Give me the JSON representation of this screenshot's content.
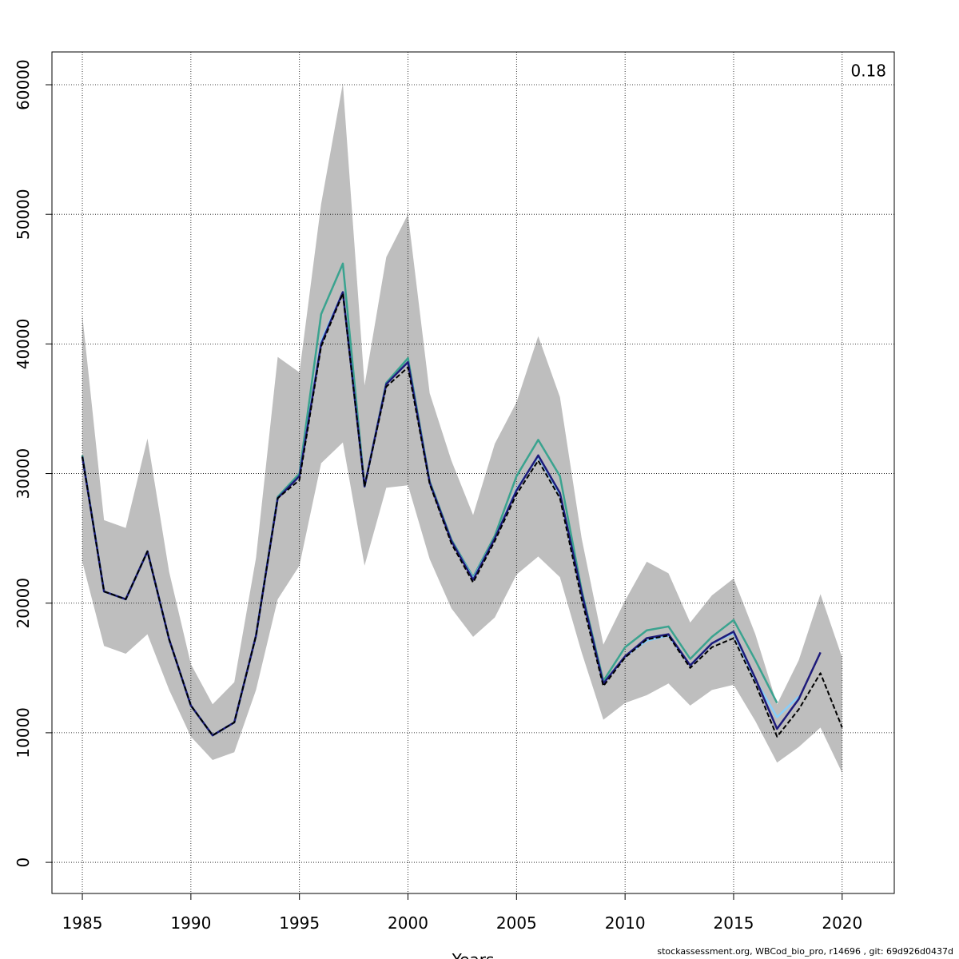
{
  "chart_data": {
    "type": "line",
    "x_label": "Years",
    "annotation": "0.18",
    "footer": "stockassessment.org, WBCod_bio_pro, r14696 , git: 69d926d0437d",
    "x": [
      1985,
      1986,
      1987,
      1988,
      1989,
      1990,
      1991,
      1992,
      1993,
      1994,
      1995,
      1996,
      1997,
      1998,
      1999,
      2000,
      2001,
      2002,
      2003,
      2004,
      2005,
      2006,
      2007,
      2008,
      2009,
      2010,
      2011,
      2012,
      2013,
      2014,
      2015,
      2016,
      2017,
      2018,
      2019,
      2020
    ],
    "band": {
      "color": "#bebebe",
      "upper": [
        42200,
        26400,
        25800,
        32700,
        22400,
        15300,
        12200,
        13900,
        23500,
        39000,
        37800,
        50800,
        60100,
        36800,
        46700,
        50000,
        36200,
        31000,
        26800,
        32300,
        35500,
        40600,
        35900,
        25000,
        16800,
        20200,
        23200,
        22300,
        18500,
        20600,
        21900,
        17600,
        12200,
        15600,
        20700,
        15800
      ],
      "lower": [
        23200,
        16700,
        16100,
        17600,
        13300,
        9700,
        7900,
        8500,
        13300,
        20300,
        22900,
        30800,
        32400,
        22900,
        28900,
        29100,
        23400,
        19600,
        17400,
        18900,
        22200,
        23600,
        22000,
        16200,
        11000,
        12300,
        12900,
        13800,
        12100,
        13300,
        13700,
        10900,
        7700,
        8900,
        10400,
        6900
      ]
    },
    "series": [
      {
        "color": "#3aa38f",
        "values": [
          31400,
          20900,
          20300,
          24000,
          17200,
          12100,
          9800,
          10800,
          17500,
          28200,
          30000,
          42300,
          46200,
          29000,
          37000,
          38900,
          29400,
          24900,
          22000,
          25200,
          29800,
          32600,
          29800,
          21000,
          14000,
          16600,
          17900,
          18200,
          15700,
          17400,
          18700,
          15600,
          12300,
          null,
          null,
          null
        ]
      },
      {
        "color": "#87cefa",
        "values": [
          31300,
          20900,
          20300,
          24000,
          17200,
          12100,
          9800,
          10800,
          17500,
          28100,
          29800,
          40200,
          44000,
          29000,
          36900,
          38600,
          29300,
          24800,
          21900,
          25000,
          28800,
          31300,
          28400,
          20700,
          13800,
          15900,
          17100,
          17500,
          15200,
          16900,
          17700,
          14100,
          11200,
          12800,
          null,
          null
        ]
      },
      {
        "color": "#1d1a7a",
        "values": [
          31300,
          20900,
          20300,
          24000,
          17200,
          12100,
          9800,
          10800,
          17500,
          28100,
          29800,
          40000,
          44000,
          29000,
          36900,
          38600,
          29300,
          24800,
          21800,
          25000,
          28700,
          31400,
          28500,
          20800,
          13800,
          15900,
          17300,
          17600,
          15200,
          16900,
          17800,
          14200,
          10300,
          12600,
          16200,
          null
        ]
      },
      {
        "color": "#000000",
        "dashed": true,
        "values": [
          31300,
          20900,
          20300,
          24000,
          17200,
          12100,
          9800,
          10800,
          17500,
          28100,
          29500,
          39800,
          43900,
          29000,
          36700,
          38200,
          29200,
          24600,
          21600,
          24800,
          28400,
          31000,
          28100,
          20300,
          13600,
          15800,
          17200,
          17500,
          15000,
          16600,
          17300,
          13800,
          9700,
          11800,
          14600,
          10400
        ]
      }
    ],
    "xlim": [
      1983.6,
      2022.4
    ],
    "ylim": [
      -2400,
      62530
    ],
    "xticks": [
      1985,
      1990,
      1995,
      2000,
      2005,
      2010,
      2015,
      2020
    ],
    "yticks": [
      0,
      10000,
      20000,
      30000,
      40000,
      50000,
      60000
    ],
    "grid": true
  }
}
